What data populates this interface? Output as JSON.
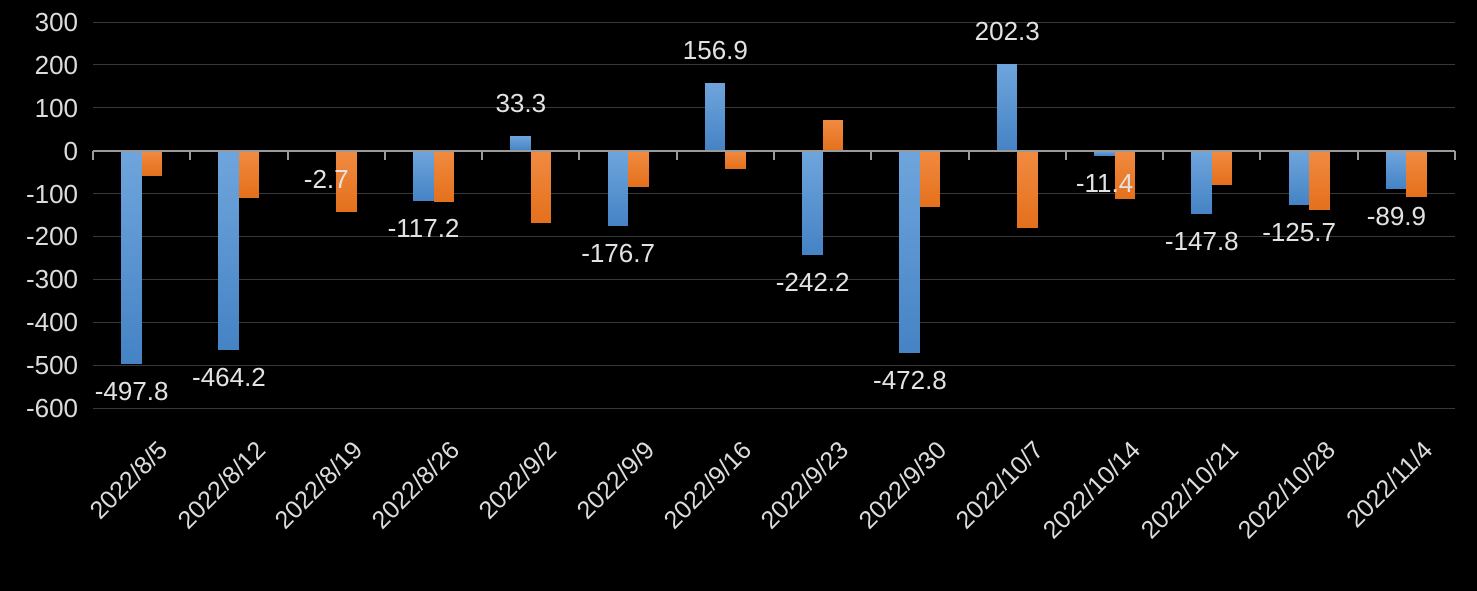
{
  "chart_data": {
    "type": "bar",
    "title": "",
    "xlabel": "",
    "ylabel": "",
    "categories": [
      "2022/8/5",
      "2022/8/12",
      "2022/8/19",
      "2022/8/26",
      "2022/9/2",
      "2022/9/9",
      "2022/9/16",
      "2022/9/23",
      "2022/9/30",
      "2022/10/7",
      "2022/10/14",
      "2022/10/21",
      "2022/10/28",
      "2022/11/4"
    ],
    "series": [
      {
        "name": "blue",
        "values": [
          -497.8,
          -464.2,
          -2.7,
          -117.2,
          33.3,
          -176.7,
          156.9,
          -242.2,
          -472.8,
          202.3,
          -11.4,
          -147.8,
          -125.7,
          -89.9
        ],
        "data_labels": [
          "-497.8",
          "-464.2",
          "-2.7",
          "-117.2",
          "33.3",
          "-176.7",
          "156.9",
          "-242.2",
          "-472.8",
          "202.3",
          "-11.4",
          "-147.8",
          "-125.7",
          "-89.9"
        ],
        "labels_shown": true,
        "color_top": "#6fa5dc",
        "color_bottom": "#4583c5"
      },
      {
        "name": "orange",
        "values": [
          -60,
          -110,
          -143,
          -119,
          -168,
          -85,
          -43,
          72,
          -131,
          -181,
          -113,
          -80,
          -138,
          -107
        ],
        "values_estimated": true,
        "labels_shown": false,
        "color_top": "#f18b41",
        "color_bottom": "#e4701c"
      }
    ],
    "ylim": [
      -600,
      300
    ],
    "yticks": [
      300,
      200,
      100,
      0,
      -100,
      -200,
      -300,
      -400,
      -500,
      -600
    ],
    "ytick_labels": [
      "300",
      "200",
      "100",
      "0",
      "-100",
      "-200",
      "-300",
      "-400",
      "-500",
      "-600"
    ],
    "x_tick_label_rotation_deg": 45,
    "grid": true,
    "legend": "none",
    "colors": {
      "background": "#000000",
      "gridline": "#383838",
      "axis_line": "#9a9a9a",
      "text": "#dcdcdc"
    }
  }
}
